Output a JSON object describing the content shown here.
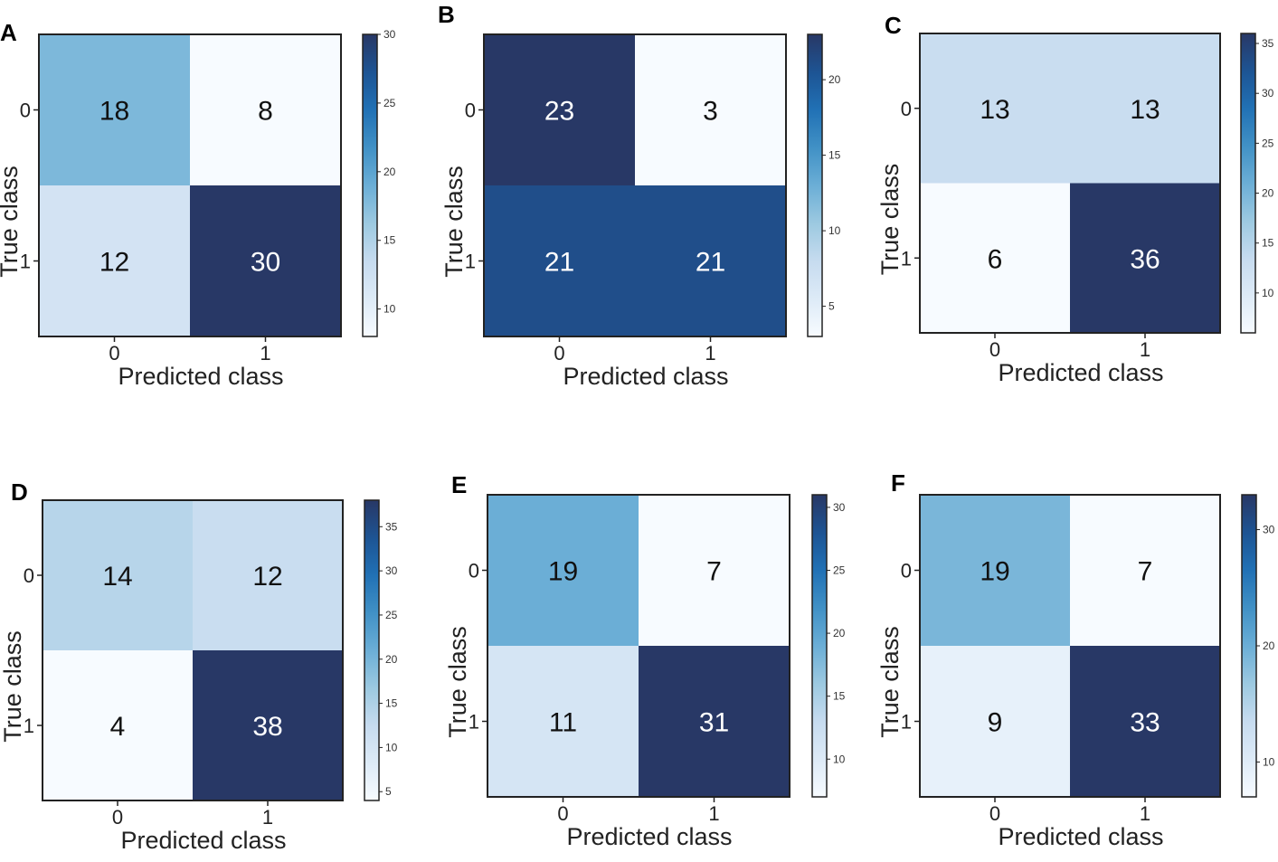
{
  "colors": {
    "low": "#f7fbff",
    "mid": "#6aaed6",
    "high": "#283866",
    "dark_text": "#111111",
    "light_text": "#ffffff"
  },
  "chart_data": [
    {
      "type": "heatmap",
      "panel": "A",
      "xlabel": "Predicted class",
      "ylabel": "True class",
      "x_categories": [
        "0",
        "1"
      ],
      "y_categories": [
        "0",
        "1"
      ],
      "values": [
        [
          18,
          8
        ],
        [
          12,
          30
        ]
      ],
      "colorbar": {
        "min": 8,
        "max": 30,
        "ticks": [
          10,
          15,
          20,
          25,
          30
        ]
      }
    },
    {
      "type": "heatmap",
      "panel": "B",
      "xlabel": "Predicted class",
      "ylabel": "True class",
      "x_categories": [
        "0",
        "1"
      ],
      "y_categories": [
        "0",
        "1"
      ],
      "values": [
        [
          23,
          3
        ],
        [
          21,
          21
        ]
      ],
      "colorbar": {
        "min": 3,
        "max": 23,
        "ticks": [
          5,
          10,
          15,
          20
        ]
      }
    },
    {
      "type": "heatmap",
      "panel": "C",
      "xlabel": "Predicted class",
      "ylabel": "True class",
      "x_categories": [
        "0",
        "1"
      ],
      "y_categories": [
        "0",
        "1"
      ],
      "values": [
        [
          13,
          13
        ],
        [
          6,
          36
        ]
      ],
      "colorbar": {
        "min": 6,
        "max": 36,
        "ticks": [
          10,
          15,
          20,
          25,
          30,
          35
        ]
      }
    },
    {
      "type": "heatmap",
      "panel": "D",
      "xlabel": "Predicted class",
      "ylabel": "True class",
      "x_categories": [
        "0",
        "1"
      ],
      "y_categories": [
        "0",
        "1"
      ],
      "values": [
        [
          14,
          12
        ],
        [
          4,
          38
        ]
      ],
      "colorbar": {
        "min": 4,
        "max": 38,
        "ticks": [
          5,
          10,
          15,
          20,
          25,
          30,
          35
        ]
      }
    },
    {
      "type": "heatmap",
      "panel": "E",
      "xlabel": "Predicted class",
      "ylabel": "True class",
      "x_categories": [
        "0",
        "1"
      ],
      "y_categories": [
        "0",
        "1"
      ],
      "values": [
        [
          19,
          7
        ],
        [
          11,
          31
        ]
      ],
      "colorbar": {
        "min": 7,
        "max": 31,
        "ticks": [
          10,
          15,
          20,
          25,
          30
        ]
      }
    },
    {
      "type": "heatmap",
      "panel": "F",
      "xlabel": "Predicted class",
      "ylabel": "True class",
      "x_categories": [
        "0",
        "1"
      ],
      "y_categories": [
        "0",
        "1"
      ],
      "values": [
        [
          19,
          7
        ],
        [
          9,
          33
        ]
      ],
      "colorbar": {
        "min": 7,
        "max": 33,
        "ticks": [
          10,
          20,
          30
        ]
      }
    }
  ]
}
